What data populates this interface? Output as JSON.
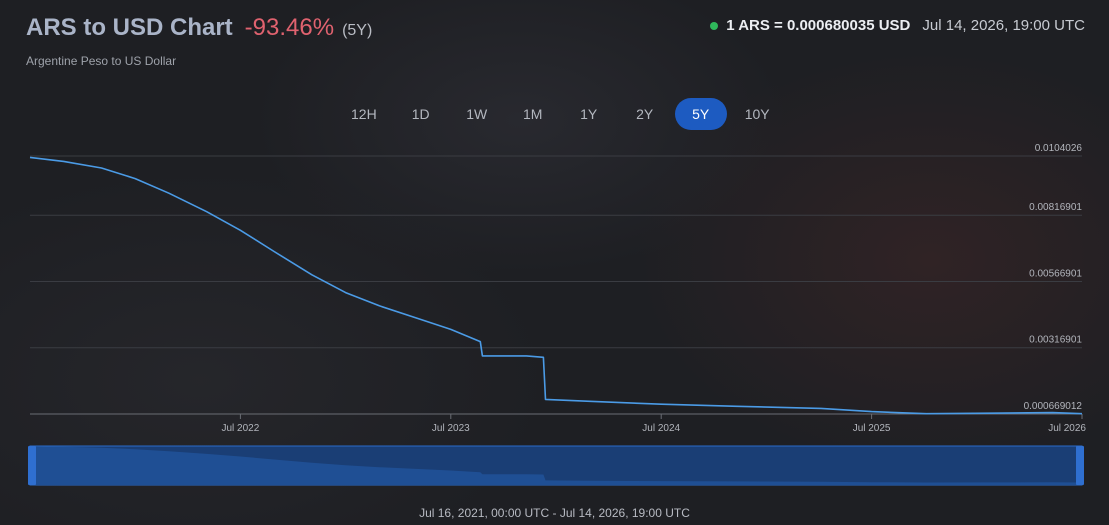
{
  "header": {
    "title": "ARS to USD Chart",
    "change": "-93.46%",
    "period": "(5Y)",
    "subtitle": "Argentine Peso to US Dollar",
    "rate": "1 ARS = 0.000680035 USD",
    "rate_time": "Jul 14, 2026, 19:00 UTC"
  },
  "tabs": [
    {
      "label": "12H",
      "active": false
    },
    {
      "label": "1D",
      "active": false
    },
    {
      "label": "1W",
      "active": false
    },
    {
      "label": "1M",
      "active": false
    },
    {
      "label": "1Y",
      "active": false
    },
    {
      "label": "2Y",
      "active": false
    },
    {
      "label": "5Y",
      "active": true
    },
    {
      "label": "10Y",
      "active": false
    }
  ],
  "footer": {
    "range": "Jul 16, 2021, 00:00 UTC - Jul 14, 2026, 19:00 UTC"
  },
  "colors": {
    "line": "#4b9be6",
    "navigator_fill": "#1f4f94",
    "navigator_border": "#2a6bc9",
    "grid": "#3a3c42",
    "accent_active_tab": "#1d5bc1",
    "negative_change": "#e0626f",
    "live_dot": "#2fb75b"
  },
  "chart_data": {
    "type": "line",
    "title": "ARS to USD Chart",
    "x_ticks": [
      "Jul 2022",
      "Jul 2023",
      "Jul 2024",
      "Jul 2025",
      "Jul 2026"
    ],
    "x_tick_values": [
      2022.54,
      2023.54,
      2024.54,
      2025.54,
      2026.54
    ],
    "x_range": [
      2021.54,
      2026.54
    ],
    "y_ticks": [
      "0.0104026",
      "0.00816901",
      "0.00566901",
      "0.00316901",
      "0.000669012"
    ],
    "y_tick_values": [
      0.0104026,
      0.00816901,
      0.00566901,
      0.00316901,
      0.000669012
    ],
    "y_range": [
      0.000669012,
      0.0104026
    ],
    "grid": true,
    "series": [
      {
        "points": [
          [
            2021.54,
            0.01035
          ],
          [
            2021.7,
            0.0102
          ],
          [
            2021.88,
            0.00995
          ],
          [
            2022.04,
            0.00955
          ],
          [
            2022.2,
            0.009
          ],
          [
            2022.38,
            0.0083
          ],
          [
            2022.54,
            0.0076
          ],
          [
            2022.7,
            0.0068
          ],
          [
            2022.88,
            0.00592
          ],
          [
            2023.04,
            0.00525
          ],
          [
            2023.2,
            0.00475
          ],
          [
            2023.4,
            0.00423
          ],
          [
            2023.54,
            0.00386
          ],
          [
            2023.68,
            0.0034
          ],
          [
            2023.69,
            0.00286
          ],
          [
            2023.9,
            0.00286
          ],
          [
            2023.98,
            0.00281
          ],
          [
            2023.99,
            0.00122
          ],
          [
            2024.2,
            0.00115
          ],
          [
            2024.54,
            0.00104
          ],
          [
            2024.9,
            0.00096
          ],
          [
            2025.3,
            0.00088
          ],
          [
            2025.54,
            0.00076
          ],
          [
            2025.8,
            0.00068
          ],
          [
            2026.1,
            0.0007
          ],
          [
            2026.4,
            0.00072
          ],
          [
            2026.54,
            0.00068
          ]
        ]
      }
    ]
  }
}
